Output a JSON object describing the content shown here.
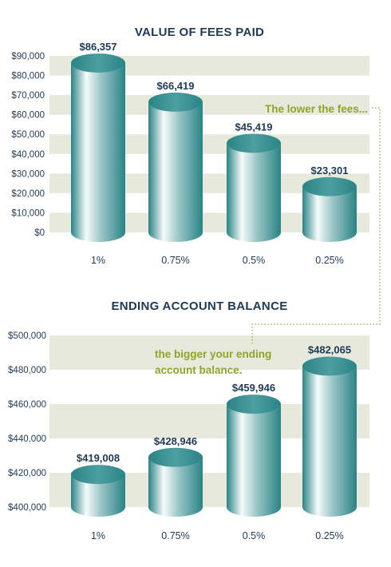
{
  "chart_data": [
    {
      "type": "bar",
      "title": "VALUE OF FEES PAID",
      "categories": [
        "1%",
        "0.75%",
        "0.5%",
        "0.25%"
      ],
      "values": [
        86357,
        66419,
        45419,
        23301
      ],
      "value_labels": [
        "$86,357",
        "$66,419",
        "$45,419",
        "$23,301"
      ],
      "y_tick_labels": [
        "$0",
        "$10,000",
        "$20,000",
        "$30,000",
        "$40,000",
        "$50,000",
        "$60,000",
        "$70,000",
        "$80,000",
        "$90,000"
      ],
      "ylim": [
        0,
        90000
      ],
      "grid": "alternating bands",
      "annotation": "The lower the fees..."
    },
    {
      "type": "bar",
      "title": "ENDING ACCOUNT BALANCE",
      "categories": [
        "1%",
        "0.75%",
        "0.5%",
        "0.25%"
      ],
      "values": [
        419008,
        428946,
        459946,
        482065
      ],
      "value_labels": [
        "$419,008",
        "$428,946",
        "$459,946",
        "$482,065"
      ],
      "y_tick_labels": [
        "$400,000",
        "$420,000",
        "$440,000",
        "$460,000",
        "$480,000",
        "$500,000"
      ],
      "ylim": [
        400000,
        500000
      ],
      "grid": "alternating bands",
      "annotation": "the bigger your ending account balance."
    }
  ],
  "colors": {
    "title": "#1f3a57",
    "band": "#e6e9dc",
    "bar_dark": "#2f8a8c",
    "bar_light": "#f3f8f8",
    "annotation": "#8ea52a"
  }
}
